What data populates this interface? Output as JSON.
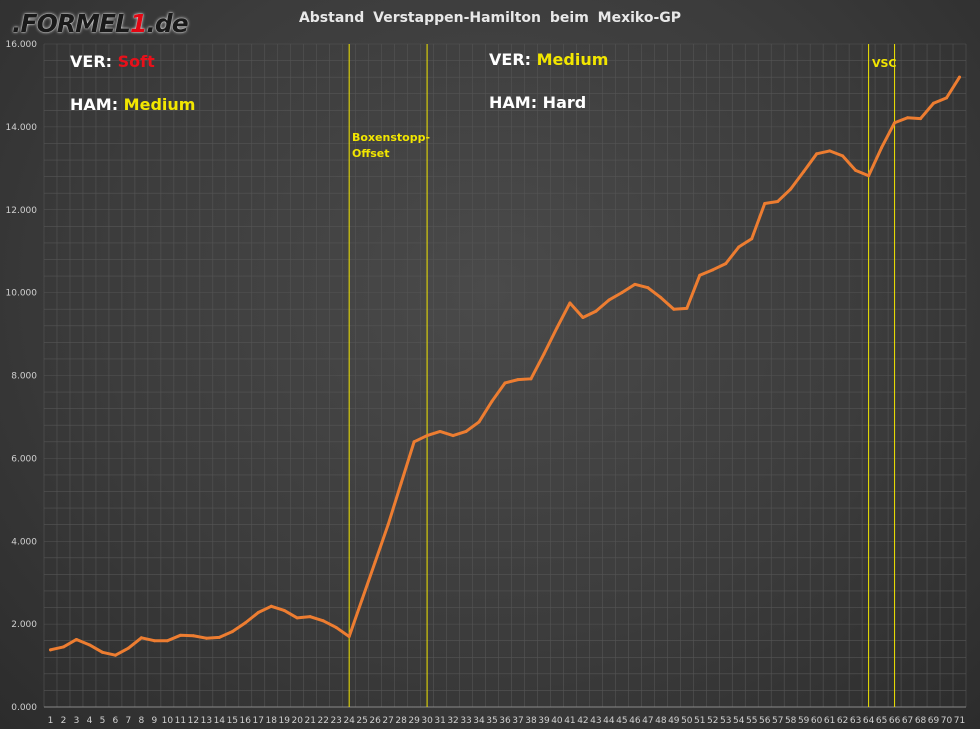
{
  "logo": {
    "prefix": ".FORMEL",
    "one": "1",
    "suffix": ".de"
  },
  "colors": {
    "line": "#ed7d31",
    "marker": "#f2e600",
    "soft": "#e8101a",
    "medium": "#f2e600",
    "hard": "#ffffff",
    "text": "#ffffff",
    "axis_text": "#d0d0d0"
  },
  "annotations": {
    "stint1_ver_label": "VER:",
    "stint1_ver_tyre": "Soft",
    "stint1_ham_label": "HAM:",
    "stint1_ham_tyre": "Medium",
    "stint2_ver_label": "VER:",
    "stint2_ver_tyre": "Medium",
    "stint2_ham_label": "HAM:",
    "stint2_ham_tyre": "Hard"
  },
  "chart_data": {
    "type": "line",
    "title": "Abstand  Verstappen-Hamilton  beim  Mexiko-GP",
    "xlabel": "",
    "ylabel": "",
    "x": [
      1,
      2,
      3,
      4,
      5,
      6,
      7,
      8,
      9,
      10,
      11,
      12,
      13,
      14,
      15,
      16,
      17,
      18,
      19,
      20,
      21,
      22,
      23,
      24,
      25,
      26,
      27,
      28,
      29,
      30,
      31,
      32,
      33,
      34,
      35,
      36,
      37,
      38,
      39,
      40,
      41,
      42,
      43,
      44,
      45,
      46,
      47,
      48,
      49,
      50,
      51,
      52,
      53,
      54,
      55,
      56,
      57,
      58,
      59,
      60,
      61,
      62,
      63,
      64,
      65,
      66,
      67,
      68,
      69,
      70,
      71
    ],
    "series": [
      {
        "values": [
          1.38,
          1.45,
          1.63,
          1.5,
          1.32,
          1.25,
          1.42,
          1.67,
          1.6,
          1.6,
          1.73,
          1.72,
          1.66,
          1.68,
          1.82,
          2.03,
          2.28,
          2.43,
          2.33,
          2.15,
          2.18,
          2.08,
          1.92,
          1.7,
          2.6,
          3.5,
          4.4,
          5.4,
          6.4,
          6.55,
          6.65,
          6.55,
          6.65,
          6.88,
          7.38,
          7.82,
          7.9,
          7.92,
          8.52,
          9.15,
          9.75,
          9.4,
          9.55,
          9.82,
          10.0,
          10.2,
          10.12,
          9.88,
          9.6,
          9.62,
          10.42,
          10.55,
          10.7,
          11.1,
          11.3,
          12.15,
          12.2,
          12.5,
          12.92,
          13.35,
          13.42,
          13.3,
          12.95,
          12.82,
          13.5,
          14.1,
          14.22,
          14.2,
          14.57,
          14.7,
          15.2
        ]
      }
    ],
    "ylim": [
      0,
      16
    ],
    "yticks": [
      0,
      2,
      4,
      6,
      8,
      10,
      12,
      14,
      16
    ],
    "ytick_labels": [
      "0.000",
      "2.000",
      "4.000",
      "6.000",
      "8.000",
      "10.000",
      "12.000",
      "14.000",
      "16.000"
    ],
    "grid": true,
    "markers": [
      {
        "x": 24,
        "label_lines": [
          "Boxenstopp-",
          "Offset"
        ]
      },
      {
        "x": 30,
        "label_lines": []
      },
      {
        "x": 64,
        "label_lines": [
          "VSC"
        ]
      },
      {
        "x": 66,
        "label_lines": []
      }
    ]
  }
}
